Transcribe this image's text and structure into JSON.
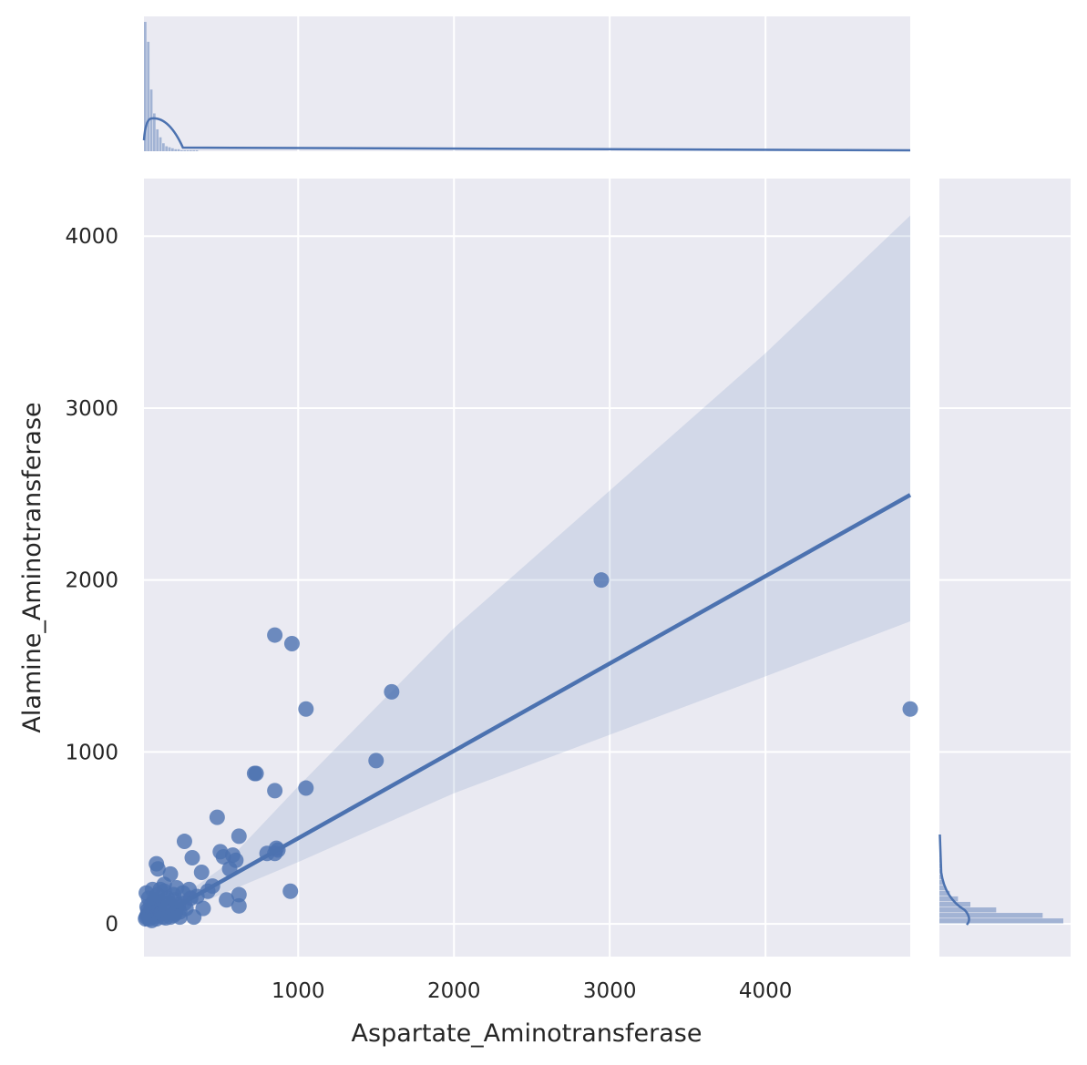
{
  "chart_data": {
    "type": "scatter",
    "xlabel": "Aspartate_Aminotransferase",
    "ylabel": "Alamine_Aminotransferase",
    "xlim": [
      10,
      4929
    ],
    "ylim": [
      -190,
      4335
    ],
    "xticks": [
      1000,
      2000,
      3000,
      4000
    ],
    "yticks": [
      0,
      1000,
      2000,
      3000,
      4000
    ],
    "grid": true,
    "colors": {
      "point": "#4c72b0",
      "background": "#eaeaf2",
      "grid": "#ffffff"
    },
    "regression": {
      "x": [
        10,
        4929
      ],
      "y": [
        -5,
        2495
      ],
      "ci_upper": [
        [
          10,
          5
        ],
        [
          500,
          320
        ],
        [
          1000,
          800
        ],
        [
          2000,
          1720
        ],
        [
          3000,
          2520
        ],
        [
          4000,
          3320
        ],
        [
          4929,
          4120
        ]
      ],
      "ci_lower": [
        [
          10,
          -20
        ],
        [
          500,
          170
        ],
        [
          1000,
          360
        ],
        [
          2000,
          760
        ],
        [
          3000,
          1100
        ],
        [
          4000,
          1440
        ],
        [
          4929,
          1760
        ]
      ]
    },
    "series": [
      {
        "points": [
          [
            2946,
            2000
          ],
          [
            4929,
            1250
          ],
          [
            1600,
            1350
          ],
          [
            1500,
            950
          ],
          [
            850,
            1680
          ],
          [
            960,
            1630
          ],
          [
            1050,
            1250
          ],
          [
            1050,
            790
          ],
          [
            720,
            875
          ],
          [
            730,
            875
          ],
          [
            850,
            775
          ],
          [
            950,
            190
          ],
          [
            480,
            620
          ],
          [
            620,
            510
          ],
          [
            270,
            480
          ],
          [
            500,
            420
          ],
          [
            860,
            440
          ],
          [
            800,
            410
          ],
          [
            850,
            410
          ],
          [
            870,
            430
          ],
          [
            580,
            400
          ],
          [
            520,
            390
          ],
          [
            320,
            385
          ],
          [
            600,
            370
          ],
          [
            560,
            320
          ],
          [
            380,
            300
          ],
          [
            90,
            350
          ],
          [
            100,
            320
          ],
          [
            180,
            290
          ],
          [
            620,
            170
          ],
          [
            540,
            140
          ],
          [
            620,
            105
          ],
          [
            390,
            90
          ],
          [
            330,
            40
          ],
          [
            140,
            230
          ],
          [
            220,
            210
          ],
          [
            300,
            200
          ],
          [
            260,
            180
          ],
          [
            200,
            170
          ],
          [
            160,
            150
          ],
          [
            120,
            130
          ],
          [
            100,
            120
          ],
          [
            80,
            100
          ],
          [
            60,
            90
          ],
          [
            50,
            70
          ],
          [
            40,
            60
          ],
          [
            30,
            50
          ],
          [
            25,
            40
          ],
          [
            70,
            60
          ],
          [
            110,
            80
          ],
          [
            150,
            90
          ],
          [
            190,
            100
          ],
          [
            230,
            110
          ],
          [
            270,
            120
          ],
          [
            310,
            150
          ],
          [
            350,
            160
          ],
          [
            420,
            190
          ],
          [
            450,
            220
          ],
          [
            210,
            60
          ],
          [
            180,
            40
          ],
          [
            130,
            40
          ],
          [
            90,
            30
          ],
          [
            60,
            20
          ],
          [
            45,
            30
          ],
          [
            35,
            80
          ],
          [
            55,
            110
          ],
          [
            75,
            140
          ],
          [
            95,
            170
          ],
          [
            115,
            200
          ],
          [
            140,
            190
          ],
          [
            170,
            120
          ],
          [
            205,
            140
          ],
          [
            240,
            70
          ],
          [
            280,
            90
          ],
          [
            20,
            30
          ],
          [
            30,
            100
          ],
          [
            40,
            150
          ],
          [
            25,
            180
          ],
          [
            65,
            200
          ],
          [
            85,
            45
          ],
          [
            150,
            35
          ],
          [
            200,
            50
          ],
          [
            240,
            40
          ],
          [
            120,
            60
          ]
        ]
      }
    ],
    "marginal_x": {
      "counts": [
        130,
        110,
        62,
        38,
        22,
        14,
        8,
        5,
        4,
        3,
        2,
        2,
        1,
        1,
        1,
        1,
        1,
        1,
        0,
        0
      ],
      "bin_edge_max": 400
    },
    "marginal_y": {
      "counts": [
        120,
        100,
        55,
        30,
        18,
        10,
        6,
        4,
        3,
        2,
        2,
        1,
        1,
        1,
        1
      ],
      "bin_edge_max": 480
    }
  }
}
